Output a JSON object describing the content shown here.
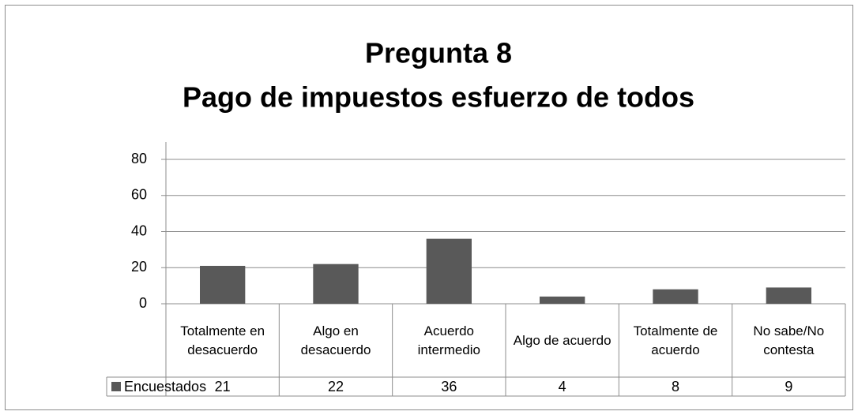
{
  "chart_data": {
    "type": "bar",
    "title": "Pregunta 8",
    "subtitle": "Pago de impuestos esfuerzo de todos",
    "categories": [
      "Totalmente en desacuerdo",
      "Algo en desacuerdo",
      "Acuerdo intermedio",
      "Algo de acuerdo",
      "Totalmente de acuerdo",
      "No sabe/No contesta"
    ],
    "series": [
      {
        "name": "Encuestados",
        "color": "#595959",
        "values": [
          21,
          22,
          36,
          4,
          8,
          9
        ]
      }
    ],
    "ylim": [
      0,
      80
    ],
    "yticks": [
      0,
      20,
      40,
      60,
      80
    ],
    "grid": true
  }
}
